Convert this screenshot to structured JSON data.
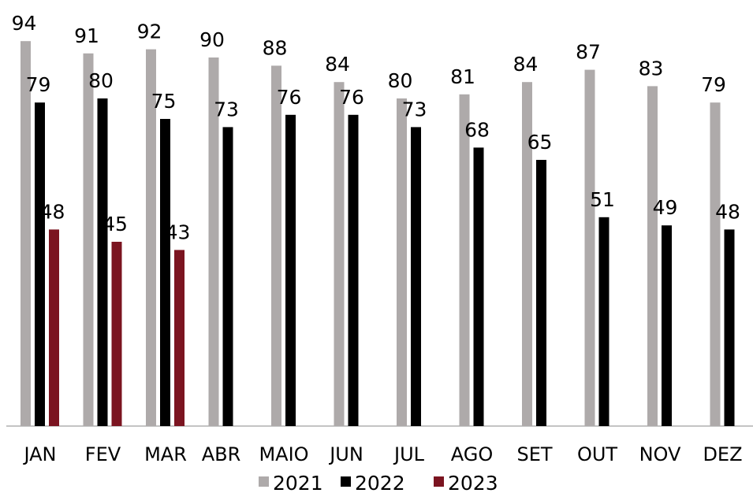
{
  "chart_data": {
    "type": "bar",
    "title": "",
    "xlabel": "",
    "ylabel": "",
    "ylim": [
      0,
      94
    ],
    "grid": false,
    "legend_position": "bottom",
    "categories": [
      "JAN",
      "FEV",
      "MAR",
      "ABR",
      "MAIO",
      "JUN",
      "JUL",
      "AGO",
      "SET",
      "OUT",
      "NOV",
      "DEZ"
    ],
    "series": [
      {
        "name": "2021",
        "color": "#aeaaaa",
        "values": [
          94,
          91,
          92,
          90,
          88,
          84,
          80,
          81,
          84,
          87,
          83,
          79
        ]
      },
      {
        "name": "2022",
        "color": "#000000",
        "values": [
          79,
          80,
          75,
          73,
          76,
          76,
          73,
          68,
          65,
          51,
          49,
          48
        ]
      },
      {
        "name": "2023",
        "color": "#7b1420",
        "values": [
          48,
          45,
          43,
          null,
          null,
          null,
          null,
          null,
          null,
          null,
          null,
          null
        ]
      }
    ]
  }
}
